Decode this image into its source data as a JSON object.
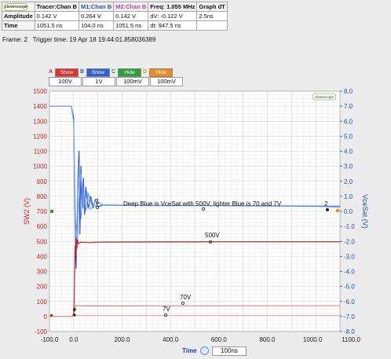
{
  "measurements": {
    "logo": "cleverscope",
    "headers": [
      "Tracer:Chan B",
      "M1:Chan B",
      "M2:Chan B",
      "Freq: 1.055 MHz",
      "Graph dT"
    ],
    "rows": [
      {
        "label": "Amplitude",
        "cells": [
          "0.142 V",
          "0.264 V",
          "0.142 V",
          "dV: -0.122 V",
          "2.5ns"
        ]
      },
      {
        "label": "Time",
        "cells": [
          "1051.5 ns",
          "104.0 ns",
          "1051.5 ns",
          "dt: 947.5 ns",
          ""
        ]
      }
    ]
  },
  "frame": {
    "label": "Frame:",
    "value": "2",
    "trigger_label": "Trigger time:",
    "trigger_value": "19 Apr 18 19:44:01.858036389"
  },
  "channels": [
    {
      "letter": "A",
      "state": "Show",
      "scale": "100V",
      "color": "#e03030"
    },
    {
      "letter": "B",
      "state": "Show",
      "scale": "1V",
      "color": "#2f5fd0"
    },
    {
      "letter": "C",
      "state": "Hide",
      "scale": "100mV",
      "color": "#2e9e3a"
    },
    {
      "letter": "D",
      "state": "Hide",
      "scale": "100mV",
      "color": "#f08a20"
    }
  ],
  "chart_data": {
    "type": "line",
    "left_axis": {
      "label": "SW2 (V)",
      "range": [
        -100,
        1500
      ],
      "ticks": [
        1500,
        1400,
        1300,
        1200,
        1100,
        1000,
        900,
        800,
        700,
        600,
        500,
        400,
        300,
        200,
        100,
        0,
        -100
      ],
      "color": "#cc2222"
    },
    "right_axis": {
      "label": "VceSat (V)",
      "range": [
        -8.0,
        8.0
      ],
      "ticks": [
        "8.0",
        "7.0",
        "6.0",
        "5.0",
        "4.0",
        "3.0",
        "2.0",
        "1.0",
        "0.0",
        "-1.0",
        "-2.0",
        "-3.0",
        "-4.0",
        "-5.0",
        "-6.0",
        "-7.0",
        "-8.0"
      ],
      "color": "#1f4fbf"
    },
    "x_axis": {
      "label": "Time",
      "unit": "100ns",
      "range": [
        -100,
        1100
      ],
      "ticks": [
        "-100.0",
        "0.0",
        "200.0",
        "400.0",
        "600.0",
        "800.0",
        "1000.0",
        "1100.0"
      ]
    },
    "grid": true,
    "logo": "cleverscope",
    "annotations": [
      "Deep Blue is VceSat with 500V, lighter Blue is 70 and 7V",
      "500V",
      "70V",
      "7V"
    ],
    "markers": [
      "1",
      "2"
    ],
    "series": [
      {
        "color": "#2a55c8",
        "axis": "right",
        "x": [
          -100,
          -10,
          0,
          5,
          10,
          14,
          18,
          22,
          26,
          30,
          35,
          40,
          45,
          50,
          60,
          70,
          80,
          90,
          100,
          120,
          200,
          400,
          600,
          800,
          1000,
          1100
        ],
        "y": [
          7.0,
          7.0,
          6.2,
          0.0,
          -3.8,
          -1.0,
          2.5,
          4.0,
          -1.5,
          3.0,
          0.2,
          2.2,
          -0.2,
          1.6,
          0.2,
          1.0,
          0.3,
          0.8,
          0.3,
          0.42,
          0.4,
          0.38,
          0.38,
          0.36,
          0.34,
          0.3
        ]
      },
      {
        "color": "#5b8fe8",
        "axis": "right",
        "x": [
          -100,
          -10,
          0,
          6,
          12,
          16,
          20,
          25,
          30,
          40,
          50,
          60,
          80,
          100,
          120,
          200,
          600,
          1000,
          1100
        ],
        "y": [
          7.0,
          7.0,
          6.0,
          -1.0,
          -3.0,
          0.5,
          3.2,
          1.5,
          -0.5,
          1.6,
          0.0,
          1.2,
          0.2,
          0.6,
          0.42,
          0.4,
          0.4,
          0.36,
          0.32
        ]
      },
      {
        "color": "#7aa7ef",
        "axis": "right",
        "x": [
          -100,
          -10,
          0,
          8,
          16,
          22,
          30,
          40,
          55,
          70,
          90,
          120,
          200,
          1100
        ],
        "y": [
          7.0,
          7.0,
          5.8,
          -0.5,
          -2.5,
          1.0,
          2.5,
          0.3,
          1.3,
          0.1,
          0.7,
          0.45,
          0.42,
          0.36
        ]
      },
      {
        "color": "#c42020",
        "axis": "left",
        "x": [
          -100,
          -8,
          -4,
          0,
          2,
          4,
          6,
          8,
          10,
          12,
          15,
          20,
          30,
          60,
          100,
          300,
          600,
          1000,
          1100
        ],
        "y": [
          0,
          0,
          4,
          20,
          120,
          300,
          470,
          390,
          520,
          460,
          510,
          485,
          495,
          492,
          495,
          496,
          497,
          497,
          497
        ]
      },
      {
        "color": "#e07070",
        "axis": "left",
        "x": [
          -100,
          -6,
          0,
          4,
          8,
          12,
          20,
          40,
          100,
          400,
          1100
        ],
        "y": [
          0,
          0,
          8,
          40,
          75,
          68,
          72,
          70,
          70,
          71,
          72
        ]
      },
      {
        "color": "#f0a8a8",
        "axis": "left",
        "x": [
          -100,
          -6,
          0,
          4,
          8,
          14,
          30,
          100,
          400,
          1100
        ],
        "y": [
          0,
          0,
          3,
          6,
          8,
          6,
          7,
          7,
          7,
          7
        ]
      }
    ]
  }
}
